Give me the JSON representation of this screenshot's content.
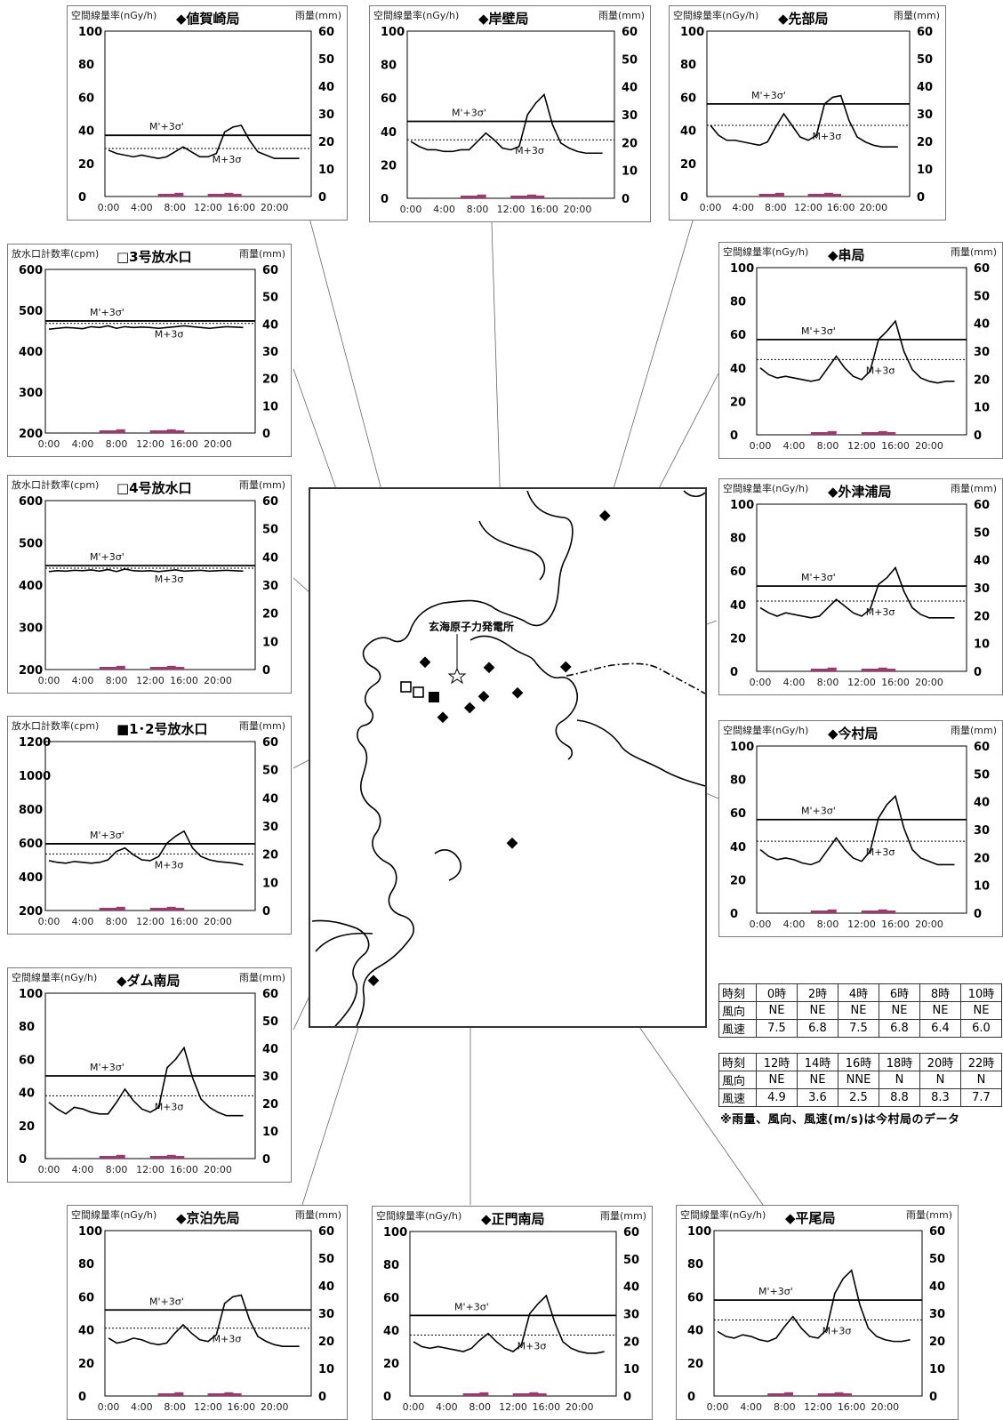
{
  "charts": [
    {
      "id": "nishijima",
      "title": "◆値賀崎局",
      "left_label": "空間線量率(nGy/h)",
      "right_label": "雨量(mm)",
      "ylim": [
        0,
        100
      ],
      "yticks": [
        "100",
        "80",
        "60",
        "40",
        "20",
        "0"
      ],
      "xticks": [
        "0:00",
        "4:00",
        "8:00",
        "12:00",
        "16:00",
        "20:00"
      ],
      "solid_label": "M'+3σ'",
      "dotted_label": "M+3σ",
      "solid": 37,
      "dotted": 29,
      "rain_ticks": [
        "60",
        "50",
        "40",
        "30",
        "20",
        "10",
        "0"
      ],
      "rain": [
        0,
        0,
        0,
        0,
        0,
        0,
        1,
        1,
        1.4,
        0,
        0,
        0,
        1,
        1,
        1.4,
        1,
        0,
        0,
        0,
        0,
        0,
        0,
        0,
        0
      ],
      "values": [
        28,
        26,
        25,
        24,
        25,
        24,
        23,
        24,
        27,
        30,
        27,
        24,
        24,
        26,
        39,
        42,
        43,
        34,
        27,
        25,
        23,
        23,
        23,
        23
      ]
    },
    {
      "id": "ganpeki",
      "title": "◆岸壁局",
      "left_label": "空間線量率(nGy/h)",
      "right_label": "雨量(mm)",
      "ylim": [
        0,
        100
      ],
      "yticks": [
        "100",
        "80",
        "60",
        "40",
        "20",
        "0"
      ],
      "xticks": [
        "0:00",
        "4:00",
        "8:00",
        "12:00",
        "16:00",
        "20:00"
      ],
      "solid_label": "M'+3σ'",
      "dotted_label": "M+3σ",
      "solid": 46,
      "dotted": 35,
      "rain_ticks": [
        "60",
        "50",
        "40",
        "30",
        "20",
        "10",
        "0"
      ],
      "rain": [
        0,
        0,
        0,
        0,
        0,
        0,
        1,
        1,
        1.4,
        0,
        0,
        0,
        1,
        1,
        1.4,
        1,
        0,
        0,
        0,
        0,
        0,
        0,
        0,
        0
      ],
      "values": [
        34,
        31,
        29,
        29,
        28,
        28,
        29,
        29,
        34,
        39,
        35,
        30,
        29,
        31,
        50,
        57,
        62,
        44,
        33,
        30,
        28,
        27,
        27,
        27
      ]
    },
    {
      "id": "sakibe",
      "title": "◆先部局",
      "left_label": "空間線量率(nGy/h)",
      "right_label": "雨量(mm)",
      "ylim": [
        0,
        100
      ],
      "yticks": [
        "100",
        "80",
        "60",
        "40",
        "20",
        "0"
      ],
      "xticks": [
        "0:00",
        "4:00",
        "8:00",
        "12:00",
        "16:00",
        "20:00"
      ],
      "solid_label": "M'+3σ'",
      "dotted_label": "M+3σ",
      "solid": 56,
      "dotted": 43,
      "rain_ticks": [
        "60",
        "50",
        "40",
        "30",
        "20",
        "10",
        "0"
      ],
      "rain": [
        0,
        0,
        0,
        0,
        0,
        0,
        1,
        1,
        1.4,
        0,
        0,
        0,
        1,
        1,
        1.4,
        1,
        0,
        0,
        0,
        0,
        0,
        0,
        0,
        0
      ],
      "values": [
        43,
        37,
        34,
        34,
        33,
        32,
        31,
        33,
        42,
        50,
        43,
        36,
        34,
        37,
        56,
        60,
        61,
        46,
        36,
        33,
        31,
        30,
        30,
        30
      ]
    },
    {
      "id": "no3",
      "title": "□3号放水口",
      "left_label": "放水口計数率(cpm)",
      "right_label": "雨量(mm)",
      "ylim": [
        200,
        600
      ],
      "yticks": [
        "600",
        "500",
        "400",
        "300",
        "200"
      ],
      "xticks": [
        "0:00",
        "4:00",
        "8:00",
        "12:00",
        "16:00",
        "20:00"
      ],
      "solid_label": "M'+3σ'",
      "dotted_label": "M+3σ",
      "solid": 474,
      "dotted": 468,
      "rain_ticks": [
        "60",
        "50",
        "40",
        "30",
        "20",
        "10",
        "0"
      ],
      "rain": [
        0,
        0,
        0,
        0,
        0,
        0,
        1,
        1,
        1.4,
        0,
        0,
        0,
        1,
        1,
        1.4,
        1,
        0,
        0,
        0,
        0,
        0,
        0,
        0,
        0
      ],
      "values": [
        454,
        456,
        458,
        457,
        455,
        460,
        458,
        462,
        456,
        460,
        458,
        459,
        458,
        456,
        458,
        460,
        462,
        460,
        458,
        456,
        458,
        460,
        459,
        458
      ]
    },
    {
      "id": "no4",
      "title": "□4号放水口",
      "left_label": "放水口計数率(cpm)",
      "right_label": "雨量(mm)",
      "ylim": [
        200,
        600
      ],
      "yticks": [
        "600",
        "500",
        "400",
        "300",
        "200"
      ],
      "xticks": [
        "0:00",
        "4:00",
        "8:00",
        "12:00",
        "16:00",
        "20:00"
      ],
      "solid_label": "M'+3σ'",
      "dotted_label": "M+3σ",
      "solid": 446,
      "dotted": 440,
      "rain_ticks": [
        "60",
        "50",
        "40",
        "30",
        "20",
        "10",
        "0"
      ],
      "rain": [
        0,
        0,
        0,
        0,
        0,
        0,
        1,
        1,
        1.4,
        0,
        0,
        0,
        1,
        1,
        1.4,
        1,
        0,
        0,
        0,
        0,
        0,
        0,
        0,
        0
      ],
      "values": [
        432,
        434,
        433,
        435,
        434,
        436,
        433,
        437,
        432,
        438,
        434,
        433,
        434,
        432,
        434,
        436,
        433,
        434,
        435,
        433,
        434,
        435,
        434,
        433
      ]
    },
    {
      "id": "no12",
      "title": "■1･2号放水口",
      "left_label": "放水口計数率(cpm)",
      "right_label": "雨量(mm)",
      "ylim": [
        200,
        1200
      ],
      "yticks": [
        "1200",
        "1000",
        "800",
        "600",
        "400",
        "200"
      ],
      "xticks": [
        "0:00",
        "4:00",
        "8:00",
        "12:00",
        "16:00",
        "20:00"
      ],
      "solid_label": "M'+3σ'",
      "dotted_label": "M+3σ",
      "solid": 595,
      "dotted": 535,
      "rain_ticks": [
        "60",
        "50",
        "40",
        "30",
        "20",
        "10",
        "0"
      ],
      "rain": [
        0,
        0,
        0,
        0,
        0,
        0,
        1,
        1,
        1.4,
        0,
        0,
        0,
        1,
        1,
        1.4,
        1,
        0,
        0,
        0,
        0,
        0,
        0,
        0,
        0
      ],
      "values": [
        495,
        485,
        480,
        490,
        485,
        480,
        485,
        500,
        550,
        570,
        530,
        500,
        495,
        520,
        600,
        640,
        670,
        570,
        520,
        500,
        490,
        485,
        480,
        470
      ]
    },
    {
      "id": "dam",
      "title": "◆ダム南局",
      "left_label": "空間線量率(nGy/h)",
      "right_label": "雨量(mm)",
      "ylim": [
        0,
        100
      ],
      "yticks": [
        "100",
        "80",
        "60",
        "40",
        "20",
        "0"
      ],
      "xticks": [
        "0:00",
        "4:00",
        "8:00",
        "12:00",
        "16:00",
        "20:00"
      ],
      "solid_label": "M'+3σ'",
      "dotted_label": "M+3σ",
      "solid": 50,
      "dotted": 38,
      "rain_ticks": [
        "60",
        "50",
        "40",
        "30",
        "20",
        "10",
        "0"
      ],
      "rain": [
        0,
        0,
        0,
        0,
        0,
        0,
        1,
        1,
        1.4,
        0,
        0,
        0,
        1,
        1,
        1.4,
        1,
        0,
        0,
        0,
        0,
        0,
        0,
        0,
        0
      ],
      "values": [
        34,
        30,
        27,
        31,
        30,
        28,
        27,
        27,
        34,
        42,
        35,
        30,
        28,
        31,
        55,
        60,
        67,
        49,
        36,
        31,
        28,
        26,
        26,
        26
      ]
    },
    {
      "id": "kushi",
      "title": "◆串局",
      "left_label": "空間線量率(nGy/h)",
      "right_label": "雨量(mm)",
      "ylim": [
        0,
        100
      ],
      "yticks": [
        "100",
        "80",
        "60",
        "40",
        "20",
        "0"
      ],
      "xticks": [
        "0:00",
        "4:00",
        "8:00",
        "12:00",
        "16:00",
        "20:00"
      ],
      "solid_label": "M'+3σ'",
      "dotted_label": "M+3σ",
      "solid": 57,
      "dotted": 45,
      "rain_ticks": [
        "60",
        "50",
        "40",
        "30",
        "20",
        "10",
        "0"
      ],
      "rain": [
        0,
        0,
        0,
        0,
        0,
        0,
        1,
        1,
        1.4,
        0,
        0,
        0,
        1,
        1,
        1.4,
        1,
        0,
        0,
        0,
        0,
        0,
        0,
        0,
        0
      ],
      "values": [
        40,
        36,
        34,
        35,
        34,
        33,
        32,
        33,
        40,
        47,
        40,
        35,
        33,
        38,
        57,
        62,
        68,
        50,
        39,
        34,
        32,
        31,
        32,
        32
      ]
    },
    {
      "id": "sotsu",
      "title": "◆外津浦局",
      "left_label": "空間線量率(nGy/h)",
      "right_label": "雨量(mm)",
      "ylim": [
        0,
        100
      ],
      "yticks": [
        "100",
        "80",
        "60",
        "40",
        "20",
        "0"
      ],
      "xticks": [
        "0:00",
        "4:00",
        "8:00",
        "12:00",
        "16:00",
        "20:00"
      ],
      "solid_label": "M'+3σ'",
      "dotted_label": "M+3σ",
      "solid": 51,
      "dotted": 42,
      "rain_ticks": [
        "60",
        "50",
        "40",
        "30",
        "20",
        "10",
        "0"
      ],
      "rain": [
        0,
        0,
        0,
        0,
        0,
        0,
        1,
        1,
        1.4,
        0,
        0,
        0,
        1,
        1,
        1.4,
        1,
        0,
        0,
        0,
        0,
        0,
        0,
        0,
        0
      ],
      "values": [
        38,
        35,
        33,
        35,
        34,
        33,
        32,
        33,
        38,
        43,
        39,
        35,
        33,
        37,
        52,
        56,
        62,
        48,
        38,
        34,
        32,
        32,
        32,
        32
      ]
    },
    {
      "id": "imamura",
      "title": "◆今村局",
      "left_label": "空間線量率(nGy/h)",
      "right_label": "雨量(mm)",
      "ylim": [
        0,
        100
      ],
      "yticks": [
        "100",
        "80",
        "60",
        "40",
        "20",
        "0"
      ],
      "xticks": [
        "0:00",
        "4:00",
        "8:00",
        "12:00",
        "16:00",
        "20:00"
      ],
      "solid_label": "M'+3σ'",
      "dotted_label": "M+3σ",
      "solid": 56,
      "dotted": 43,
      "rain_ticks": [
        "60",
        "50",
        "40",
        "30",
        "20",
        "10",
        "0"
      ],
      "rain": [
        0,
        0,
        0,
        0,
        0,
        0,
        1,
        1,
        1.4,
        0,
        0,
        0,
        1,
        1,
        1.4,
        1,
        0,
        0,
        0,
        0,
        0,
        0,
        0,
        0
      ],
      "values": [
        38,
        34,
        32,
        33,
        32,
        30,
        29,
        31,
        38,
        45,
        38,
        33,
        31,
        37,
        57,
        65,
        70,
        51,
        38,
        33,
        31,
        29,
        29,
        29
      ]
    },
    {
      "id": "kyodomari",
      "title": "◆京泊先局",
      "left_label": "空間線量率(nGy/h)",
      "right_label": "雨量(mm)",
      "ylim": [
        0,
        100
      ],
      "yticks": [
        "100",
        "80",
        "60",
        "40",
        "20",
        "0"
      ],
      "xticks": [
        "0:00",
        "4:00",
        "8:00",
        "12:00",
        "16:00",
        "20:00"
      ],
      "solid_label": "M'+3σ'",
      "dotted_label": "M+3σ",
      "solid": 52,
      "dotted": 41,
      "rain_ticks": [
        "60",
        "50",
        "40",
        "30",
        "20",
        "10",
        "0"
      ],
      "rain": [
        0,
        0,
        0,
        0,
        0,
        0,
        1,
        1,
        1.4,
        0,
        0,
        0,
        1,
        1,
        1.4,
        1,
        0,
        0,
        0,
        0,
        0,
        0,
        0,
        0
      ],
      "values": [
        35,
        32,
        33,
        35,
        34,
        32,
        31,
        32,
        38,
        43,
        38,
        34,
        33,
        37,
        56,
        60,
        61,
        46,
        36,
        33,
        31,
        30,
        30,
        30
      ]
    },
    {
      "id": "seimon",
      "title": "◆正門南局",
      "left_label": "空間線量率(nGy/h)",
      "right_label": "雨量(mm)",
      "ylim": [
        0,
        100
      ],
      "yticks": [
        "100",
        "80",
        "60",
        "40",
        "20",
        "0"
      ],
      "xticks": [
        "0:00",
        "4:00",
        "8:00",
        "12:00",
        "16:00",
        "20:00"
      ],
      "solid_label": "M'+3σ'",
      "dotted_label": "M+3σ",
      "solid": 49,
      "dotted": 37,
      "rain_ticks": [
        "60",
        "50",
        "40",
        "30",
        "20",
        "10",
        "0"
      ],
      "rain": [
        0,
        0,
        0,
        0,
        0,
        0,
        1,
        1,
        1.4,
        0,
        0,
        0,
        1,
        1,
        1.4,
        1,
        0,
        0,
        0,
        0,
        0,
        0,
        0,
        0
      ],
      "values": [
        33,
        30,
        29,
        30,
        29,
        28,
        27,
        29,
        34,
        38,
        33,
        29,
        27,
        31,
        50,
        56,
        61,
        45,
        33,
        29,
        27,
        26,
        26,
        27
      ]
    },
    {
      "id": "hirao",
      "title": "◆平尾局",
      "left_label": "空間線量率(nGy/h)",
      "right_label": "雨量(mm)",
      "ylim": [
        0,
        100
      ],
      "yticks": [
        "100",
        "80",
        "60",
        "40",
        "20",
        "0"
      ],
      "xticks": [
        "0:00",
        "4:00",
        "8:00",
        "12:00",
        "16:00",
        "20:00"
      ],
      "solid_label": "M'+3σ'",
      "dotted_label": "M+3σ",
      "solid": 58,
      "dotted": 46,
      "rain_ticks": [
        "60",
        "50",
        "40",
        "30",
        "20",
        "10",
        "0"
      ],
      "rain": [
        0,
        0,
        0,
        0,
        0,
        0,
        1,
        1,
        1.4,
        0,
        0,
        0,
        1,
        1,
        1.4,
        1,
        0,
        0,
        0,
        0,
        0,
        0,
        0,
        0
      ],
      "values": [
        39,
        36,
        35,
        37,
        36,
        34,
        33,
        35,
        42,
        48,
        41,
        36,
        35,
        40,
        62,
        71,
        76,
        55,
        41,
        36,
        34,
        33,
        33,
        34
      ]
    }
  ],
  "chart_data": [
    {
      "type": "line",
      "title": "◆値賀崎局",
      "ylabel": "空間線量率(nGy/h)",
      "y2label": "雨量(mm)",
      "ylim": [
        0,
        100
      ],
      "y2lim": [
        0,
        60
      ]
    },
    {
      "type": "line",
      "title": "◆岸壁局",
      "ylabel": "空間線量率(nGy/h)",
      "y2label": "雨量(mm)",
      "ylim": [
        0,
        100
      ],
      "y2lim": [
        0,
        60
      ]
    },
    {
      "type": "line",
      "title": "◆先部局",
      "ylabel": "空間線量率(nGy/h)",
      "y2label": "雨量(mm)",
      "ylim": [
        0,
        100
      ],
      "y2lim": [
        0,
        60
      ]
    },
    {
      "type": "line",
      "title": "□3号放水口",
      "ylabel": "放水口計数率(cpm)",
      "y2label": "雨量(mm)",
      "ylim": [
        200,
        600
      ],
      "y2lim": [
        0,
        60
      ]
    },
    {
      "type": "line",
      "title": "□4号放水口",
      "ylabel": "放水口計数率(cpm)",
      "y2label": "雨量(mm)",
      "ylim": [
        200,
        600
      ],
      "y2lim": [
        0,
        60
      ]
    },
    {
      "type": "line",
      "title": "■1･2号放水口",
      "ylabel": "放水口計数率(cpm)",
      "y2label": "雨量(mm)",
      "ylim": [
        200,
        1200
      ],
      "y2lim": [
        0,
        60
      ]
    },
    {
      "type": "line",
      "title": "◆ダム南局",
      "ylabel": "空間線量率(nGy/h)",
      "y2label": "雨量(mm)",
      "ylim": [
        0,
        100
      ],
      "y2lim": [
        0,
        60
      ]
    },
    {
      "type": "line",
      "title": "◆串局",
      "ylabel": "空間線量率(nGy/h)",
      "y2label": "雨量(mm)",
      "ylim": [
        0,
        100
      ],
      "y2lim": [
        0,
        60
      ]
    },
    {
      "type": "line",
      "title": "◆外津浦局",
      "ylabel": "空間線量率(nGy/h)",
      "y2label": "雨量(mm)",
      "ylim": [
        0,
        100
      ],
      "y2lim": [
        0,
        60
      ]
    },
    {
      "type": "line",
      "title": "◆今村局",
      "ylabel": "空間線量率(nGy/h)",
      "y2label": "雨量(mm)",
      "ylim": [
        0,
        100
      ],
      "y2lim": [
        0,
        60
      ]
    },
    {
      "type": "line",
      "title": "◆京泊先局",
      "ylabel": "空間線量率(nGy/h)",
      "y2label": "雨量(mm)",
      "ylim": [
        0,
        100
      ],
      "y2lim": [
        0,
        60
      ]
    },
    {
      "type": "line",
      "title": "◆正門南局",
      "ylabel": "空間線量率(nGy/h)",
      "y2label": "雨量(mm)",
      "ylim": [
        0,
        100
      ],
      "y2lim": [
        0,
        60
      ]
    },
    {
      "type": "line",
      "title": "◆平尾局",
      "ylabel": "空間線量率(nGy/h)",
      "y2label": "雨量(mm)",
      "ylim": [
        0,
        100
      ],
      "y2lim": [
        0,
        60
      ]
    }
  ],
  "colors": {
    "rain_bar": "#9b3a6e",
    "line": "#000000"
  },
  "map": {
    "plant_label": "玄海原子力発電所"
  },
  "wind_table_1": {
    "rows": [
      [
        "時刻",
        "0時",
        "2時",
        "4時",
        "6時",
        "8時",
        "10時"
      ],
      [
        "風向",
        "NE",
        "NE",
        "NE",
        "NE",
        "NE",
        "NE"
      ],
      [
        "風速",
        "7.5",
        "6.8",
        "7.5",
        "6.8",
        "6.4",
        "6.0"
      ]
    ]
  },
  "wind_table_2": {
    "rows": [
      [
        "時刻",
        "12時",
        "14時",
        "16時",
        "18時",
        "20時",
        "22時"
      ],
      [
        "風向",
        "NE",
        "NE",
        "NNE",
        "N",
        "N",
        "N"
      ],
      [
        "風速",
        "4.9",
        "3.6",
        "2.5",
        "8.8",
        "8.3",
        "7.7"
      ]
    ]
  },
  "note": "※雨量、風向、風速(m/s)は今村局のデータ"
}
